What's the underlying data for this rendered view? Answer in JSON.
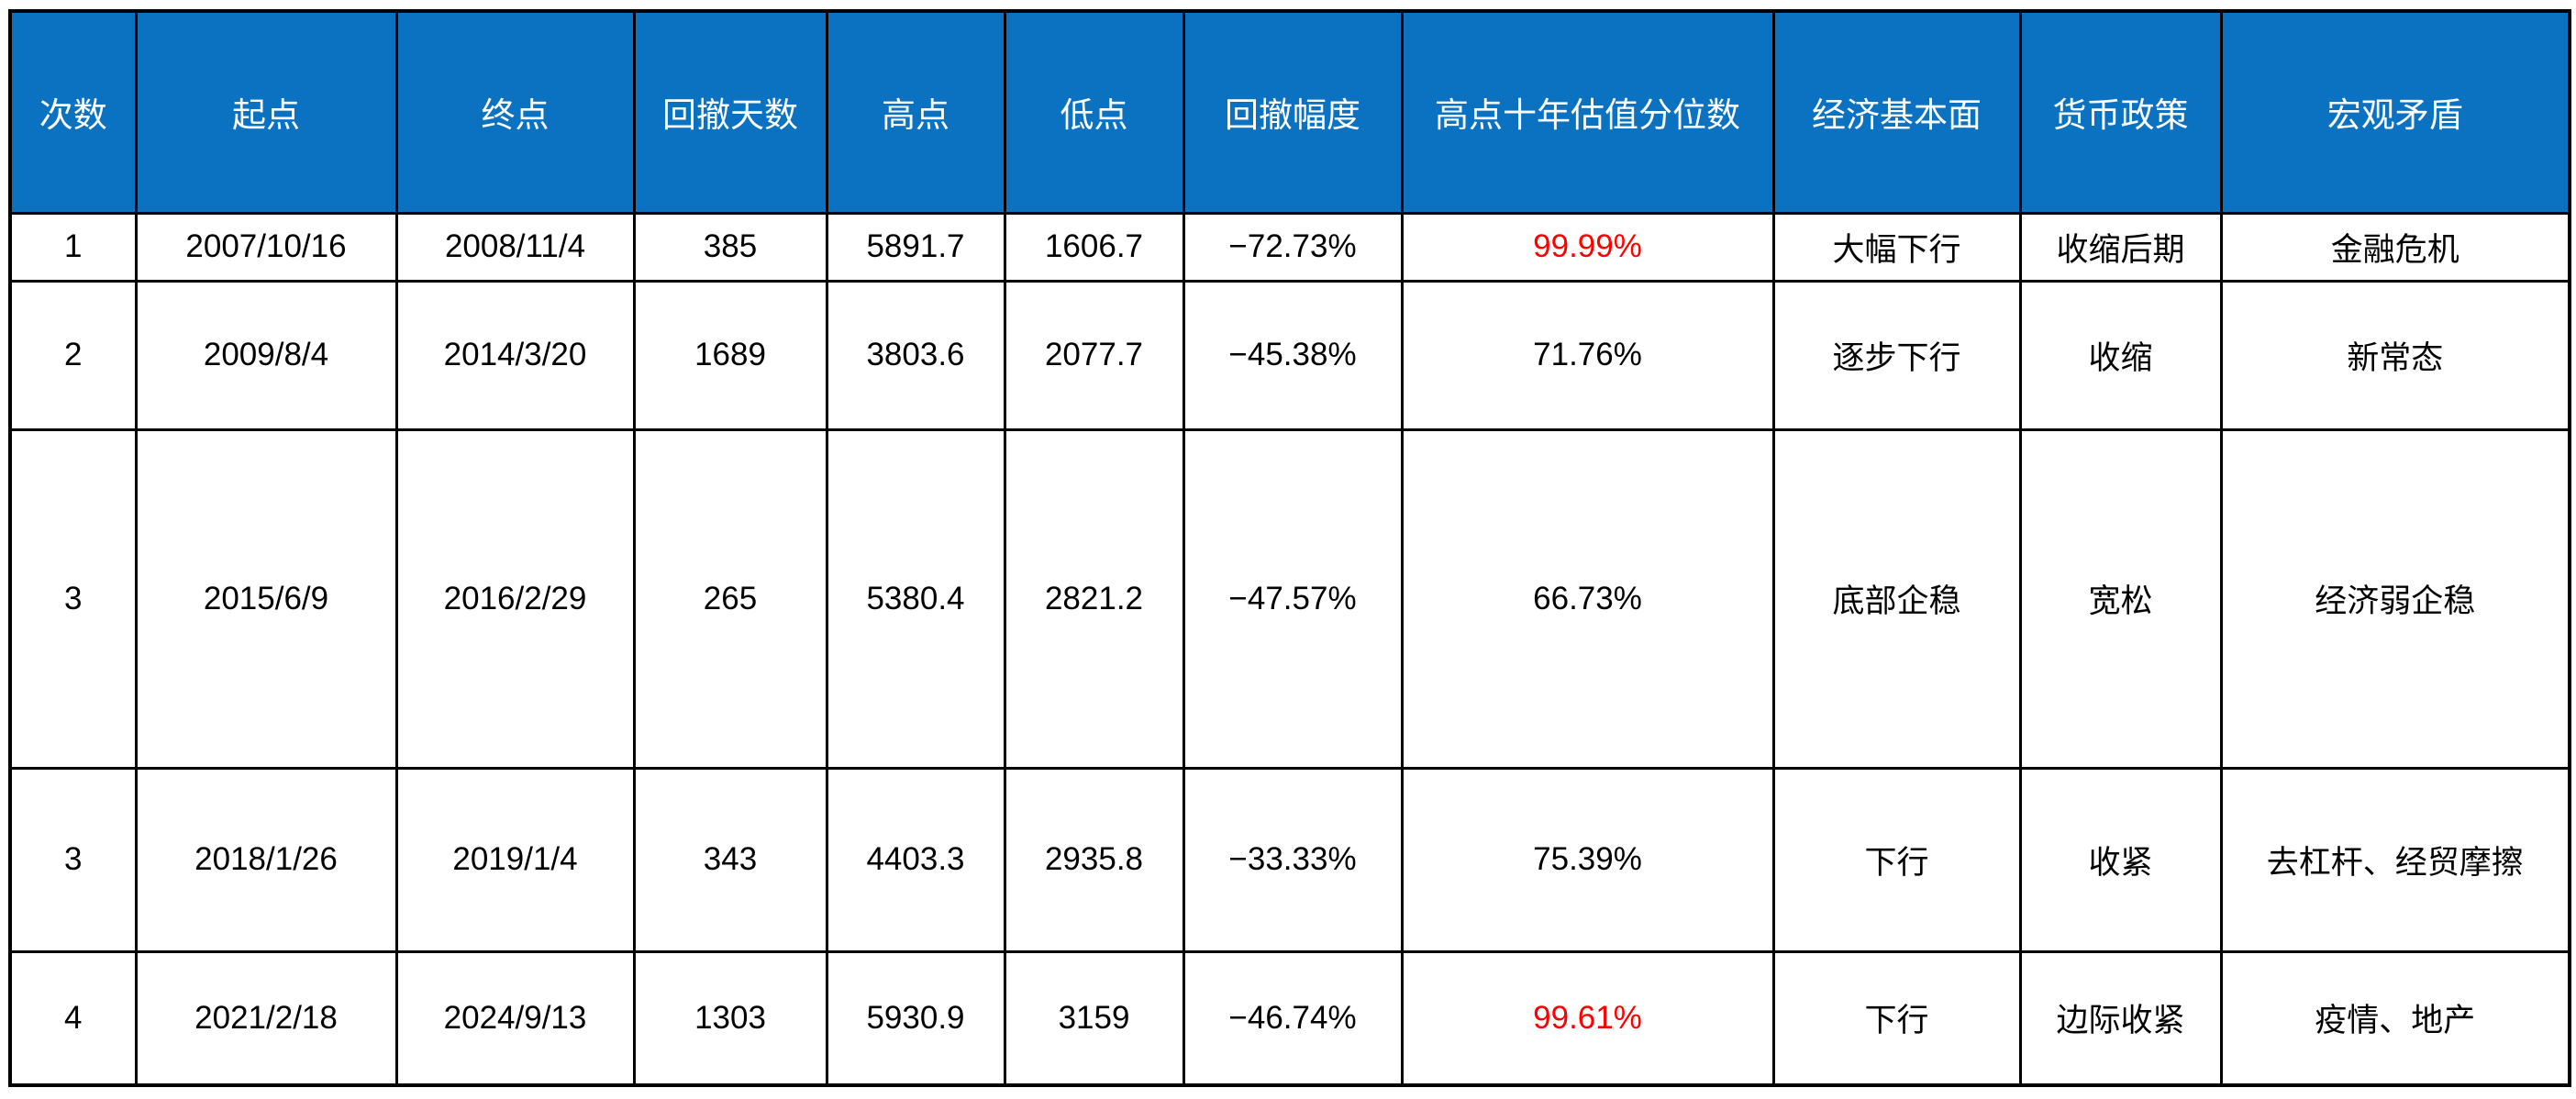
{
  "colors": {
    "header_bg": "#0b72c2",
    "header_text": "#ffffff",
    "body_text": "#000000",
    "highlight_red": "#ff0000",
    "border": "#000000",
    "page_bg": "#ffffff"
  },
  "chart_data": {
    "type": "table",
    "title": "",
    "columns": [
      "次数",
      "起点",
      "终点",
      "回撤天数",
      "高点",
      "低点",
      "回撤幅度",
      "高点十年估值分位数",
      "经济基本面",
      "货币政策",
      "宏观矛盾"
    ],
    "rows": [
      [
        "1",
        "2007/10/16",
        "2008/11/4",
        "385",
        "5891.7",
        "1606.7",
        "−72.73%",
        "99.99%",
        "大幅下行",
        "收缩后期",
        "金融危机"
      ],
      [
        "2",
        "2009/8/4",
        "2014/3/20",
        "1689",
        "3803.6",
        "2077.7",
        "−45.38%",
        "71.76%",
        "逐步下行",
        "收缩",
        "新常态"
      ],
      [
        "3",
        "2015/6/9",
        "2016/2/29",
        "265",
        "5380.4",
        "2821.2",
        "−47.57%",
        "66.73%",
        "底部企稳",
        "宽松",
        "经济弱企稳"
      ],
      [
        "3",
        "2018/1/26",
        "2019/1/4",
        "343",
        "4403.3",
        "2935.8",
        "−33.33%",
        "75.39%",
        "下行",
        "收紧",
        "去杠杆、经贸摩擦"
      ],
      [
        "4",
        "2021/2/18",
        "2024/9/13",
        "1303",
        "5930.9",
        "3159",
        "−46.74%",
        "99.61%",
        "下行",
        "边际收紧",
        "疫情、地产"
      ]
    ],
    "highlighted_cells": [
      {
        "row": 0,
        "col": 7,
        "color": "#ff0000"
      },
      {
        "row": 4,
        "col": 7,
        "color": "#ff0000"
      }
    ],
    "layout_hints": {
      "header_style": "blue background, white text",
      "grid": "black solid borders on all cells",
      "alignment": "all cells centered"
    }
  }
}
